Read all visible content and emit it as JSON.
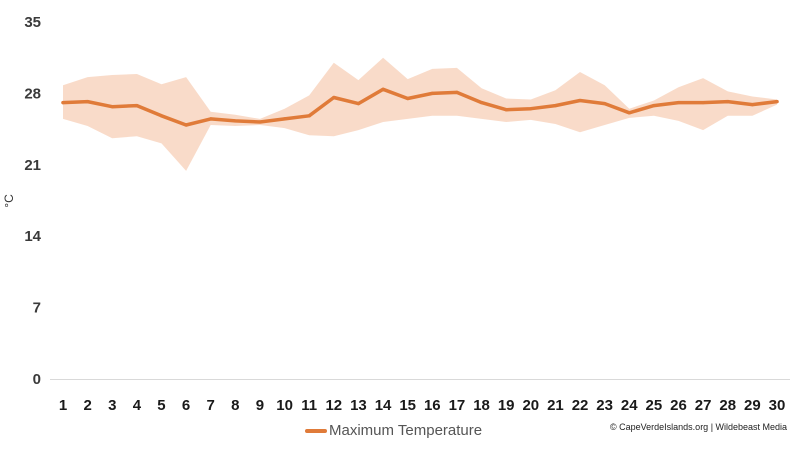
{
  "colors": {
    "line": "#e07b39",
    "band": "#f9d9c6",
    "axis": "#d9d9d9"
  },
  "legend": {
    "label": "Maximum Temperature"
  },
  "credit": "© CapeVerdeIslands.org | Wildebeast Media",
  "chart_data": {
    "type": "line",
    "ylabel": "°C",
    "xlabel": "",
    "ylim": [
      0,
      35
    ],
    "yticks": [
      0,
      7,
      14,
      21,
      28,
      35
    ],
    "grid": false,
    "legend_position": "bottom",
    "x": [
      1,
      2,
      3,
      4,
      5,
      6,
      7,
      8,
      9,
      10,
      11,
      12,
      13,
      14,
      15,
      16,
      17,
      18,
      19,
      20,
      21,
      22,
      23,
      24,
      25,
      26,
      27,
      28,
      29,
      30
    ],
    "series": [
      {
        "name": "Maximum Temperature",
        "values": [
          27.1,
          27.2,
          26.7,
          26.8,
          25.8,
          24.9,
          25.5,
          25.3,
          25.2,
          25.5,
          25.8,
          27.6,
          27.0,
          28.4,
          27.5,
          28.0,
          28.1,
          27.1,
          26.4,
          26.5,
          26.8,
          27.3,
          27.0,
          26.1,
          26.8,
          27.1,
          27.1,
          27.2,
          26.9,
          27.2
        ],
        "range_high": [
          28.8,
          29.6,
          29.8,
          29.9,
          28.9,
          29.6,
          26.2,
          25.9,
          25.5,
          26.5,
          27.8,
          31.0,
          29.3,
          31.5,
          29.4,
          30.4,
          30.5,
          28.5,
          27.5,
          27.4,
          28.3,
          30.1,
          28.8,
          26.5,
          27.3,
          28.6,
          29.5,
          28.2,
          27.7,
          27.4
        ],
        "range_low": [
          25.5,
          24.8,
          23.6,
          23.8,
          23.1,
          20.4,
          24.9,
          24.8,
          24.9,
          24.6,
          23.9,
          23.8,
          24.4,
          25.2,
          25.5,
          25.8,
          25.8,
          25.5,
          25.2,
          25.4,
          25.0,
          24.2,
          24.9,
          25.6,
          25.8,
          25.3,
          24.4,
          25.8,
          25.8,
          26.9
        ]
      }
    ]
  }
}
